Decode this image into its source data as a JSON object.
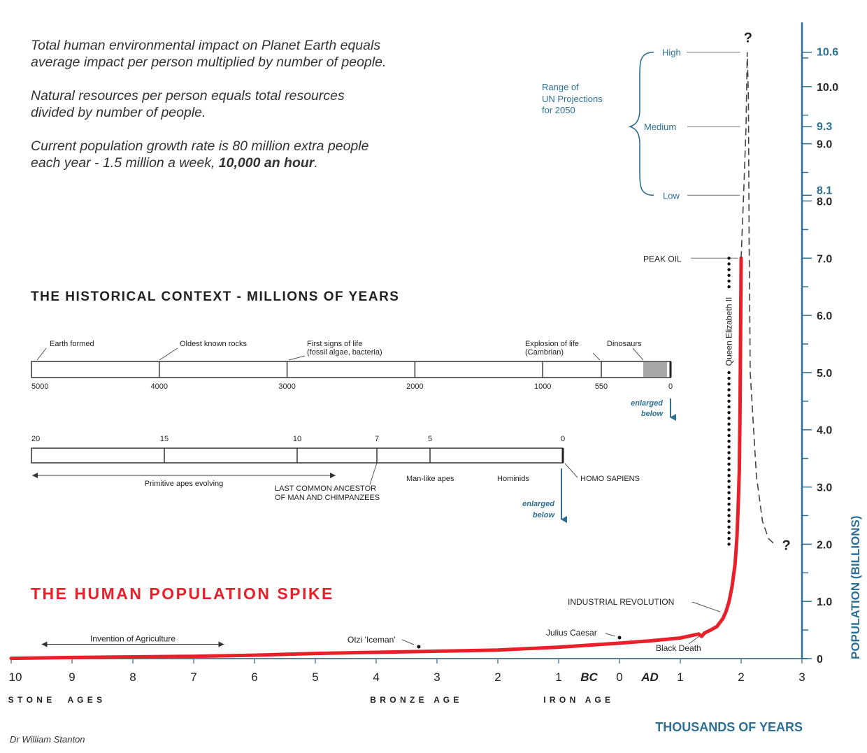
{
  "intro": {
    "p1_line1": "Total human environmental impact on Planet Earth equals",
    "p1_line2": "average impact per person multiplied by number of people.",
    "p2_line1": "Natural resources per person equals total resources",
    "p2_line2": "divided by number of people.",
    "p3_line1": "Current population growth rate is 80 million extra people",
    "p3_line2_pre": "each year - 1.5 million a week,",
    "p3_line2_bold": "10,000 an hour",
    "p3_line2_post": "."
  },
  "colors": {
    "accent_blue": "#2e6f94",
    "spike_red": "#e8202a",
    "text": "#333333",
    "dinosaur_shade": "#a8a8a8"
  },
  "historical": {
    "title": "THE HISTORICAL CONTEXT - MILLIONS OF YEARS",
    "bar1": {
      "scale_min": 0,
      "scale_max": 5000,
      "tick_labels": [
        {
          "value": 5000,
          "label": "5000"
        },
        {
          "value": 4000,
          "label": "4000"
        },
        {
          "value": 3000,
          "label": "3000"
        },
        {
          "value": 2000,
          "label": "2000"
        },
        {
          "value": 1000,
          "label": "1000"
        },
        {
          "value": 550,
          "label": "550"
        },
        {
          "value": 0,
          "label": "0"
        }
      ],
      "events": [
        {
          "value": 4600,
          "line1": "Earth formed",
          "line2": ""
        },
        {
          "value": 3800,
          "line1": "Oldest known rocks",
          "line2": ""
        },
        {
          "value": 2900,
          "line1": "First signs of life",
          "line2": "(fossil algae, bacteria)"
        },
        {
          "value": 1000,
          "line1": "Explosion of life",
          "line2": "(Cambrian)"
        },
        {
          "value": 300,
          "line1": "Dinosaurs",
          "line2": ""
        }
      ],
      "dinosaur_range": [
        230,
        65
      ],
      "enlarged_line1": "enlarged",
      "enlarged_line2": "below"
    },
    "bar2": {
      "scale_min": 0,
      "scale_max": 20,
      "tick_labels": [
        {
          "value": 20,
          "label": "20"
        },
        {
          "value": 15,
          "label": "15"
        },
        {
          "value": 10,
          "label": "10"
        },
        {
          "value": 7,
          "label": "7"
        },
        {
          "value": 5,
          "label": "5"
        },
        {
          "value": 0,
          "label": "0"
        }
      ],
      "primitive_apes": "Primitive apes evolving",
      "lca_line1": "LAST COMMON ANCESTOR",
      "lca_line2": "OF MAN AND CHIMPANZEES",
      "manlike": "Man-like apes",
      "hominids": "Hominids",
      "homo_sapiens": "HOMO SAPIENS",
      "enlarged_line1": "enlarged",
      "enlarged_line2": "below"
    }
  },
  "chart_data": {
    "type": "line",
    "title": "THE HUMAN POPULATION SPIKE",
    "xlabel": "THOUSANDS OF YEARS",
    "ylabel": "POPULATION (BILLIONS)",
    "xlim": [
      -10,
      3
    ],
    "ylim": [
      0,
      11
    ],
    "x_tick_labels": [
      "10",
      "9",
      "8",
      "7",
      "6",
      "5",
      "4",
      "3",
      "2",
      "1",
      "0",
      "1",
      "2",
      "3"
    ],
    "x_tick_values": [
      -10,
      -9,
      -8,
      -7,
      -6,
      -5,
      -4,
      -3,
      -2,
      -1,
      0,
      1,
      2,
      3
    ],
    "era_bc": "BC",
    "era_ad": "AD",
    "y_tick_labels_dark": [
      "0",
      "1.0",
      "2.0",
      "3.0",
      "4.0",
      "5.0",
      "6.0",
      "7.0",
      "8.0",
      "9.0",
      "10.0"
    ],
    "y_tick_values_dark": [
      0,
      1,
      2,
      3,
      4,
      5,
      6,
      7,
      8,
      9,
      10
    ],
    "y_tick_labels_blue": [
      "8.1",
      "9.3",
      "10.6"
    ],
    "y_tick_values_blue": [
      8.1,
      9.3,
      10.6
    ],
    "series": [
      {
        "x": [
          -10,
          -9,
          -8,
          -7,
          -6,
          -5,
          -4,
          -3,
          -2,
          -1,
          0,
          0.5,
          1,
          1.3,
          1.35,
          1.4,
          1.5,
          1.6,
          1.7,
          1.75,
          1.8,
          1.85,
          1.9,
          1.93,
          1.95,
          1.97,
          1.98,
          1.99,
          2.0
        ],
        "y": [
          0.005,
          0.02,
          0.03,
          0.04,
          0.06,
          0.09,
          0.11,
          0.13,
          0.15,
          0.2,
          0.27,
          0.31,
          0.36,
          0.43,
          0.39,
          0.45,
          0.5,
          0.56,
          0.7,
          0.82,
          0.99,
          1.26,
          1.65,
          2.1,
          2.6,
          3.3,
          4.2,
          5.5,
          7.0
        ]
      }
    ],
    "projection": {
      "x": [
        2.0,
        2.04,
        2.08,
        2.1,
        2.12,
        2.13,
        2.15,
        2.25,
        2.35,
        2.45,
        2.55
      ],
      "y": [
        7.0,
        8.1,
        9.3,
        10.6,
        9.8,
        7.5,
        5.0,
        3.2,
        2.4,
        2.1,
        2.0
      ]
    },
    "projection_end_x": [
      2.1,
      2.65
    ],
    "projection_end_y": [
      10.7,
      2.0
    ],
    "question_mark": "?",
    "un_range": {
      "label_line1": "Range of",
      "label_line2": "UN Projections",
      "label_line3": "for 2050",
      "high": "High",
      "medium": "Medium",
      "low": "Low",
      "high_value": 10.6,
      "medium_value": 9.3,
      "low_value": 8.1
    },
    "peak_oil": "PEAK OIL",
    "queen_elizabeth": "Queen Elizabeth II",
    "queen_range": {
      "x": 1.8,
      "y": [
        2.0,
        7.0
      ]
    },
    "agriculture": {
      "label": "Invention of Agriculture",
      "x_range": [
        -9.5,
        -6.5
      ],
      "y": 0.25
    },
    "annotations": [
      {
        "label": "Otzi 'Iceman'",
        "x": -3.3
      },
      {
        "label": "Julius Caesar",
        "x": 0.0
      },
      {
        "label": "Black Death",
        "x": 1.35
      },
      {
        "label": "INDUSTRIAL REVOLUTION",
        "x": 1.75
      }
    ],
    "eras": [
      {
        "label": "S T O N E     A G E S",
        "x": -10.05
      },
      {
        "label": "B R O N Z E   A G E",
        "x": -4.1
      },
      {
        "label": "I R O N   A G E",
        "x": -1.25
      }
    ]
  },
  "credit": "Dr William Stanton"
}
